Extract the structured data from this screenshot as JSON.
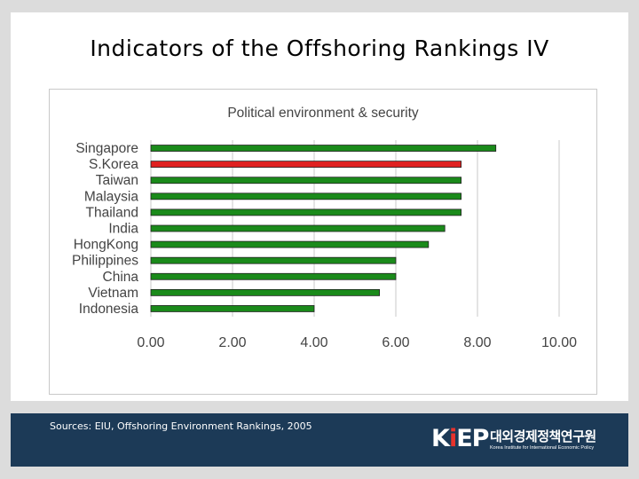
{
  "slide": {
    "title": "Indicators of the Offshoring Rankings IV"
  },
  "chart_data": {
    "type": "bar",
    "orientation": "horizontal",
    "title": "Political environment & security",
    "categories": [
      "Singapore",
      "S.Korea",
      "Taiwan",
      "Malaysia",
      "Thailand",
      "India",
      "HongKong",
      "Philippines",
      "China",
      "Vietnam",
      "Indonesia"
    ],
    "values": [
      8.45,
      7.6,
      7.6,
      7.6,
      7.6,
      7.2,
      6.8,
      6.0,
      6.0,
      5.6,
      4.0
    ],
    "highlight": "S.Korea",
    "xlim": [
      0,
      10
    ],
    "xticks": [
      0,
      2,
      4,
      6,
      8,
      10
    ],
    "xtick_labels": [
      "0.00",
      "2.00",
      "4.00",
      "6.00",
      "8.00",
      "10.00"
    ],
    "grid": true,
    "xlabel": "",
    "ylabel": ""
  },
  "footer": {
    "source": "Sources: EIU, Offshoring Environment Rankings, 2005",
    "logo_korean": "대외경제정책연구원"
  },
  "colors": {
    "bar": "#1a8a1a",
    "bar_highlight": "#e02020",
    "bar_edge": "#222222",
    "grid": "#c8c8c8",
    "footer_bg": "#1c3a57",
    "page_bg": "#dcdcdc"
  }
}
